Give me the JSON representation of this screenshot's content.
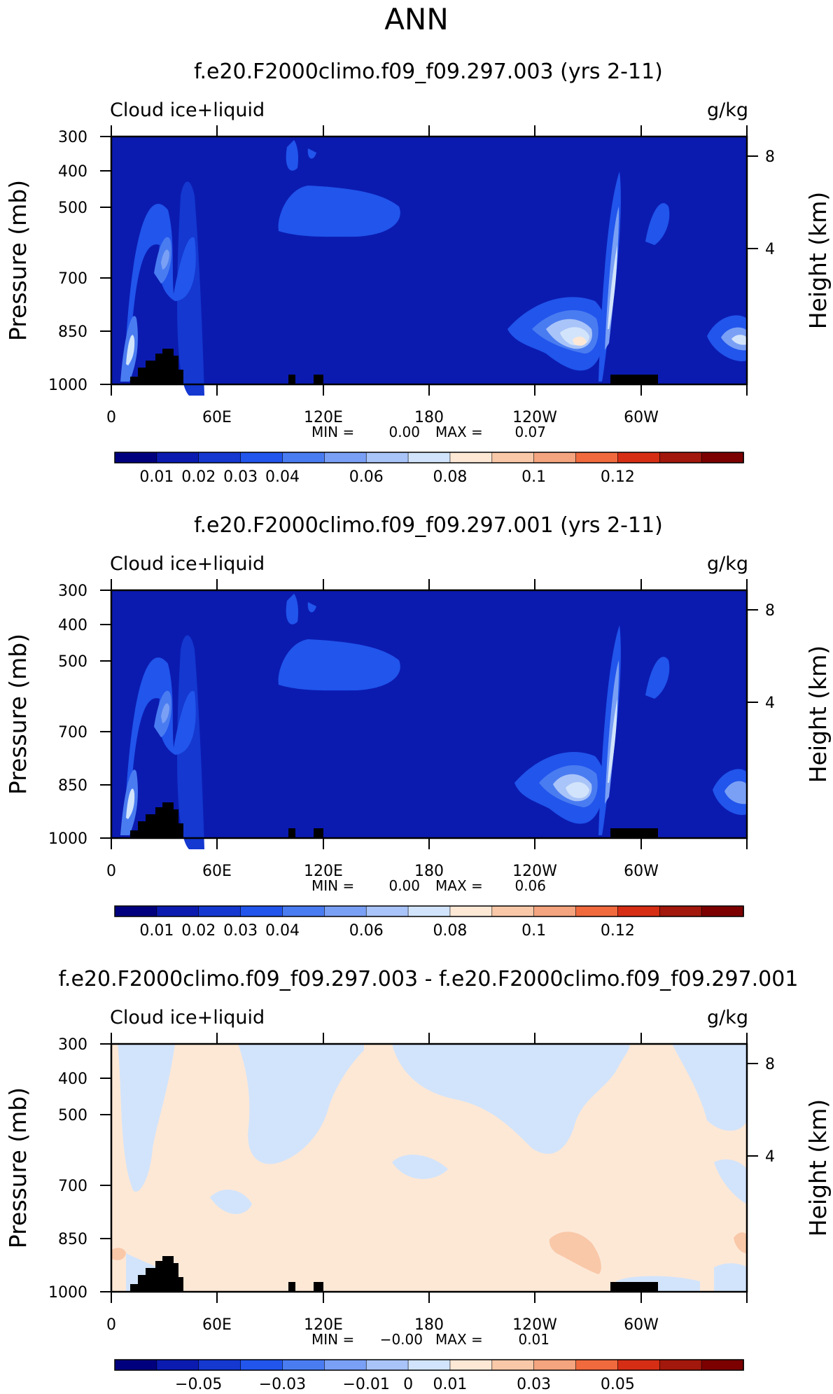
{
  "title": "ANN",
  "colors": {
    "palette": [
      "#00007f",
      "#0b1bb0",
      "#1438d0",
      "#2155ec",
      "#4a7cf1",
      "#7aa0f5",
      "#a9c4f8",
      "#d2e4fb",
      "#fde8d6",
      "#f9c8a8",
      "#f4a47e",
      "#f06a3e",
      "#d62e15",
      "#a2180c",
      "#7c0000"
    ],
    "land": "#000000"
  },
  "chart_data": [
    {
      "type": "heatmap",
      "title": "f.e20.F2000climo.f09_f09.297.003 (yrs 2-11)",
      "label_left": "Cloud ice+liquid",
      "label_right": "g/kg",
      "ylabel": "Pressure (mb)",
      "y2label": "Height (km)",
      "x_ticks": [
        "0",
        "60E",
        "120E",
        "180",
        "120W",
        "60W"
      ],
      "y_ticks": [
        "300",
        "400",
        "500",
        "700",
        "850",
        "1000"
      ],
      "y2_ticks": [
        "8",
        "4"
      ],
      "stats": {
        "min_label": "MIN =",
        "min": "0.00",
        "max_label": "MAX =",
        "max": "0.07"
      },
      "colorbar_labels": [
        "0.01",
        "0.02",
        "0.03",
        "0.04",
        "0.06",
        "0.08",
        "0.1",
        "0.12"
      ]
    },
    {
      "type": "heatmap",
      "title": "f.e20.F2000climo.f09_f09.297.001 (yrs 2-11)",
      "label_left": "Cloud ice+liquid",
      "label_right": "g/kg",
      "ylabel": "Pressure (mb)",
      "y2label": "Height (km)",
      "x_ticks": [
        "0",
        "60E",
        "120E",
        "180",
        "120W",
        "60W"
      ],
      "y_ticks": [
        "300",
        "400",
        "500",
        "700",
        "850",
        "1000"
      ],
      "y2_ticks": [
        "8",
        "4"
      ],
      "stats": {
        "min_label": "MIN =",
        "min": "0.00",
        "max_label": "MAX =",
        "max": "0.06"
      },
      "colorbar_labels": [
        "0.01",
        "0.02",
        "0.03",
        "0.04",
        "0.06",
        "0.08",
        "0.1",
        "0.12"
      ]
    },
    {
      "type": "heatmap",
      "title": "f.e20.F2000climo.f09_f09.297.003 - f.e20.F2000climo.f09_f09.297.001",
      "label_left": "Cloud ice+liquid",
      "label_right": "g/kg",
      "ylabel": "Pressure (mb)",
      "y2label": "Height (km)",
      "x_ticks": [
        "0",
        "60E",
        "120E",
        "180",
        "120W",
        "60W"
      ],
      "y_ticks": [
        "300",
        "400",
        "500",
        "700",
        "850",
        "1000"
      ],
      "y2_ticks": [
        "8",
        "4"
      ],
      "stats": {
        "min_label": "MIN =",
        "min": "−0.00",
        "max_label": "MAX =",
        "max": "0.01"
      },
      "colorbar_labels": [
        "−0.05",
        "−0.03",
        "−0.01",
        "0",
        "0.01",
        "0.03",
        "0.05"
      ]
    }
  ]
}
